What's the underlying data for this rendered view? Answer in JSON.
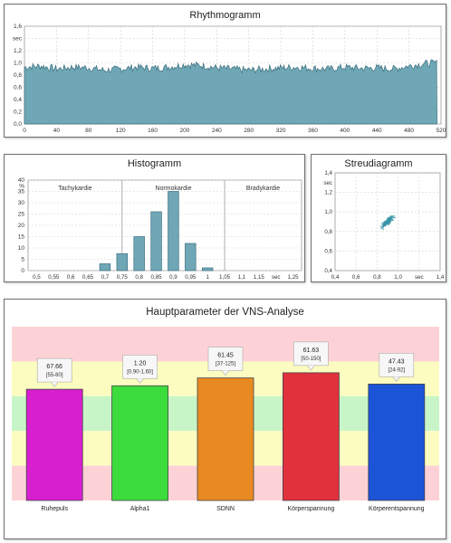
{
  "rhythmogram": {
    "title": "Rhythmogramm",
    "y_unit": "sec",
    "y_ticks": [
      "0,0",
      "0,2",
      "0,4",
      "0,6",
      "0,8",
      "1,0",
      "1,2",
      "1,4",
      "1,6"
    ],
    "x_ticks": [
      "0",
      "40",
      "80",
      "120",
      "160",
      "200",
      "240",
      "280",
      "320",
      "360",
      "400",
      "440",
      "480",
      "520"
    ]
  },
  "histogram": {
    "title": "Histogramm",
    "y_unit": "%",
    "y_ticks": [
      "0",
      "5",
      "10",
      "15",
      "20",
      "25",
      "30",
      "35",
      "40"
    ],
    "x_ticks": [
      "0,5",
      "0,55",
      "0,6",
      "0,65",
      "0,7",
      "0,75",
      "0,8",
      "0,85",
      "0,9",
      "0,95",
      "1",
      "1,05",
      "1,1",
      "1,15",
      "sec",
      "1,25"
    ],
    "zones": [
      "Tachykardie",
      "Normokardie",
      "Bradykardie"
    ]
  },
  "scatter": {
    "title": "Streudiagramm",
    "y_unit": "sec",
    "y_ticks": [
      "0,4",
      "0,6",
      "0,8",
      "1,0",
      "1,2",
      "1,4"
    ],
    "x_ticks": [
      "0,4",
      "0,6",
      "0,8",
      "1,0",
      "sec",
      "1,4"
    ]
  },
  "vns": {
    "title": "Hauptparameter der VNS-Analyse",
    "bars": [
      {
        "label": "Ruhepuls",
        "value": "67.66",
        "range": "[55-80]",
        "color": "#d81fd0"
      },
      {
        "label": "Alpha1",
        "value": "1.20",
        "range": "[0.90-1.60]",
        "color": "#3ddc3d"
      },
      {
        "label": "SDNN",
        "value": "61.45",
        "range": "[37-125]",
        "color": "#e88a22"
      },
      {
        "label": "Körperspannung",
        "value": "61.63",
        "range": "[50-150]",
        "color": "#e0313d"
      },
      {
        "label": "Körperentspannung",
        "value": "47.43",
        "range": "[24-92]",
        "color": "#1c54d8"
      }
    ]
  },
  "chart_data": [
    {
      "type": "area",
      "title": "Rhythmogramm",
      "ylabel": "sec",
      "xlim": [
        0,
        520
      ],
      "ylim": [
        0,
        1.6
      ],
      "color": "#6fa7b6",
      "grid": true,
      "x": [
        0,
        20,
        40,
        60,
        80,
        100,
        120,
        140,
        160,
        180,
        200,
        220,
        240,
        260,
        280,
        300,
        320,
        340,
        360,
        380,
        400,
        420,
        440,
        460,
        480,
        500,
        515
      ],
      "y": [
        0.93,
        0.95,
        0.9,
        0.93,
        0.92,
        0.88,
        0.9,
        0.93,
        0.91,
        0.93,
        0.97,
        0.96,
        0.92,
        0.9,
        0.88,
        0.9,
        0.92,
        0.93,
        0.91,
        0.9,
        0.93,
        0.91,
        0.92,
        0.9,
        0.95,
        0.99,
        1.0
      ]
    },
    {
      "type": "bar",
      "title": "Histogramm",
      "ylabel": "%",
      "ylim": [
        0,
        40
      ],
      "color": "#6fa7b6",
      "categories": [
        "0,7",
        "0,75",
        "0,8",
        "0,85",
        "0,9",
        "0,95",
        "1"
      ],
      "values": [
        3,
        7.5,
        15,
        26,
        35,
        12,
        1.2
      ]
    },
    {
      "type": "scatter",
      "title": "Streudiagramm",
      "ylabel": "sec",
      "xlim": [
        0.4,
        1.4
      ],
      "ylim": [
        0.4,
        1.4
      ],
      "color": "#3a95a8",
      "cluster_center": [
        0.9,
        0.9
      ]
    },
    {
      "type": "bar",
      "title": "Hauptparameter der VNS-Analyse",
      "categories": [
        "Ruhepuls",
        "Alpha1",
        "SDNN",
        "Körperspannung",
        "Körperentspannung"
      ],
      "values": [
        67.66,
        1.2,
        61.45,
        61.63,
        47.43
      ],
      "ranges": [
        "[55-80]",
        "[0.90-1.60]",
        "[37-125]",
        "[50-150]",
        "[24-92]"
      ],
      "bar_fill_levels": [
        0.36,
        0.34,
        0.295,
        0.265,
        0.33
      ]
    }
  ]
}
